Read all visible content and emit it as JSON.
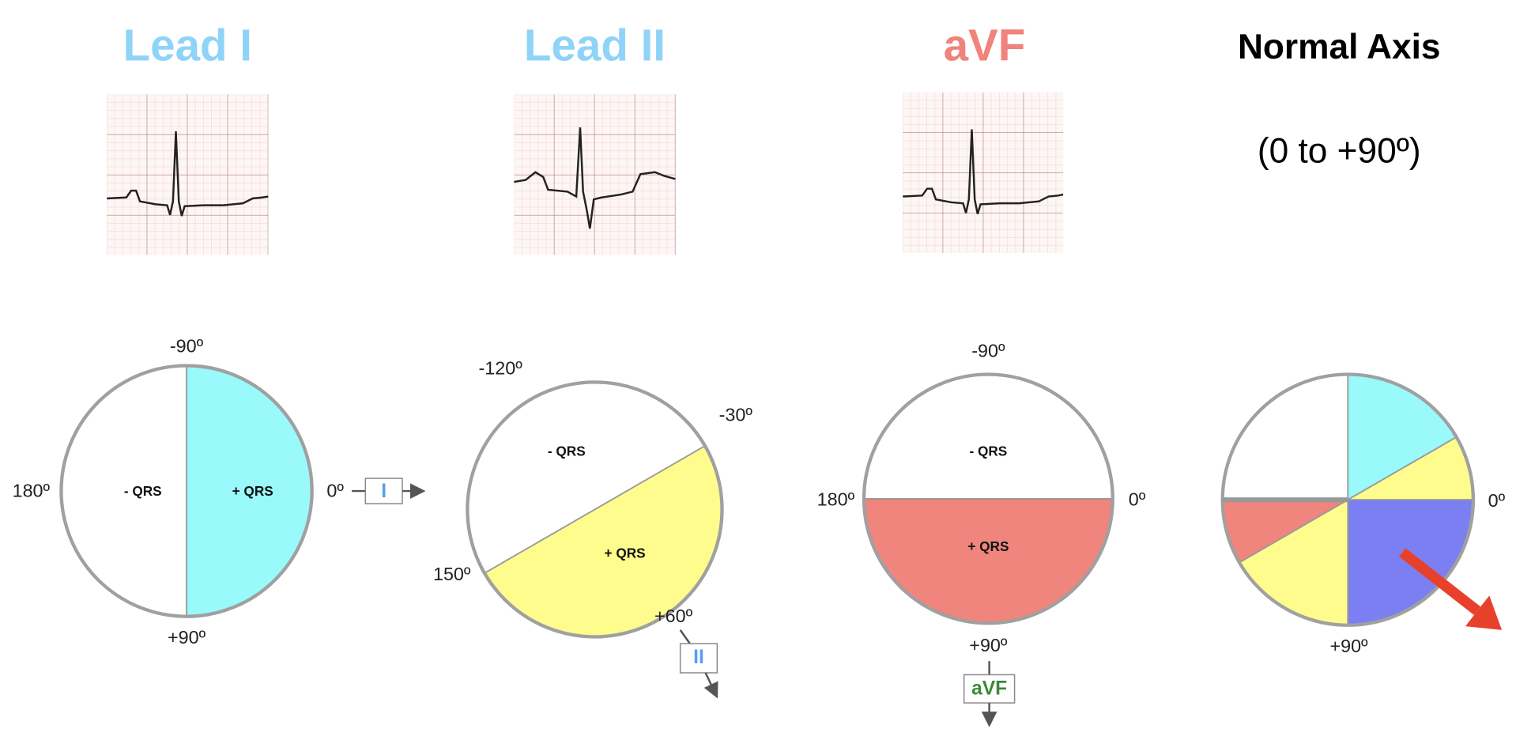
{
  "titles": {
    "lead1": "Lead I",
    "lead2": "Lead II",
    "avf": "aVF",
    "normal": "Normal Axis",
    "normal_range": "(0 to +90º)"
  },
  "colors": {
    "lead_title": "#8fd4f8",
    "avf_title": "#f0837b",
    "cyan": "#99f9fb",
    "yellow": "#fdfc8d",
    "salmon": "#ef857d",
    "blue": "#7b7ff2",
    "arrow_red": "#e8412b",
    "avf_box_text": "#3a8a3a",
    "lead_box_text": "#5b9cf0"
  },
  "diagrams": [
    {
      "labels": {
        "top": "-90º",
        "bottom": "+90º",
        "left": "180º",
        "right": "0º"
      },
      "neg": "- QRS",
      "pos": "+ QRS",
      "lead_box": "I",
      "sectors": [
        {
          "from": -90,
          "to": 90,
          "color": "cyan"
        }
      ]
    },
    {
      "labels": {
        "a": "-120º",
        "b": "-30º",
        "c": "150º",
        "d": "+60º"
      },
      "neg": "- QRS",
      "pos": "+ QRS",
      "lead_box": "II",
      "sectors": [
        {
          "from": -30,
          "to": 150,
          "color": "yellow"
        }
      ]
    },
    {
      "labels": {
        "top": "-90º",
        "bottom": "+90º",
        "left": "180º",
        "right": "0º"
      },
      "neg": "- QRS",
      "pos": "+ QRS",
      "lead_box": "aVF",
      "sectors": [
        {
          "from": 0,
          "to": 180,
          "color": "salmon"
        }
      ]
    },
    {
      "labels": {
        "right": "0º",
        "bottom": "+90º"
      },
      "sectors": [
        {
          "from": -90,
          "to": -30,
          "color": "cyan"
        },
        {
          "from": -30,
          "to": 0,
          "color": "yellow"
        },
        {
          "from": 0,
          "to": 90,
          "color": "blue"
        },
        {
          "from": 90,
          "to": 150,
          "color": "yellow"
        },
        {
          "from": 150,
          "to": 180,
          "color": "salmon"
        }
      ],
      "axis_arrow_angle": 38
    }
  ]
}
